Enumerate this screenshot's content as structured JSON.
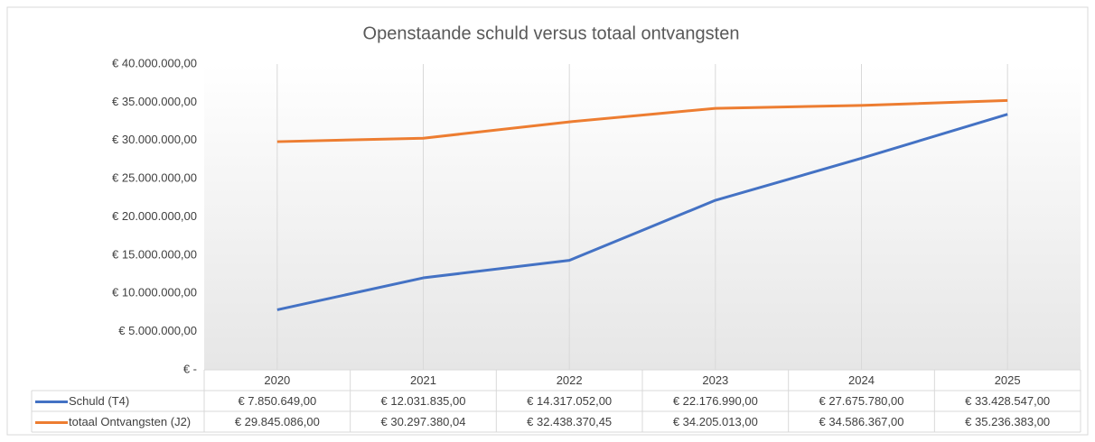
{
  "chart_data": {
    "type": "line",
    "title": "Openstaande schuld versus totaal ontvangsten",
    "categories": [
      "2020",
      "2021",
      "2022",
      "2023",
      "2024",
      "2025"
    ],
    "series": [
      {
        "name": "Schuld (T4)",
        "color": "#4472c4",
        "values": [
          7850649,
          12031835,
          14317052,
          22176990,
          27675780,
          33428547
        ],
        "value_labels": [
          "€ 7.850.649,00",
          "€ 12.031.835,00",
          "€ 14.317.052,00",
          "€ 22.176.990,00",
          "€ 27.675.780,00",
          "€ 33.428.547,00"
        ]
      },
      {
        "name": "totaal Ontvangsten (J2)",
        "color": "#ed7d31",
        "values": [
          29845086,
          30297380.04,
          32438370.45,
          34205013,
          34586367,
          35236383
        ],
        "value_labels": [
          "€ 29.845.086,00",
          "€ 30.297.380,04",
          "€ 32.438.370,45",
          "€ 34.205.013,00",
          "€ 34.586.367,00",
          "€ 35.236.383,00"
        ]
      }
    ],
    "ylim": [
      0,
      40000000
    ],
    "yticks": [
      {
        "value": 0,
        "label": "€ -"
      },
      {
        "value": 5000000,
        "label": "€ 5.000.000,00"
      },
      {
        "value": 10000000,
        "label": "€ 10.000.000,00"
      },
      {
        "value": 15000000,
        "label": "€ 15.000.000,00"
      },
      {
        "value": 20000000,
        "label": "€ 20.000.000,00"
      },
      {
        "value": 25000000,
        "label": "€ 25.000.000,00"
      },
      {
        "value": 30000000,
        "label": "€ 30.000.000,00"
      },
      {
        "value": 35000000,
        "label": "€ 35.000.000,00"
      },
      {
        "value": 40000000,
        "label": "€ 40.000.000,00"
      }
    ],
    "grid": true
  }
}
